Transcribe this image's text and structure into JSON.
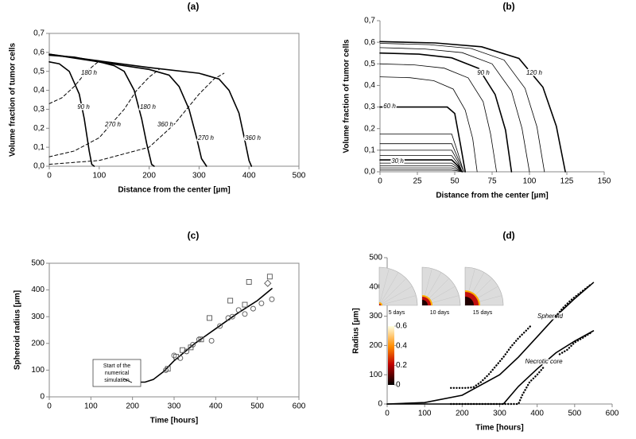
{
  "chart_data": [
    {
      "type": "line",
      "title": "(a)",
      "xlabel": "Distance from the center [µm]",
      "ylabel": "Volume fraction of tumor cells",
      "frame": "box",
      "xlim": [
        0,
        500
      ],
      "ylim": [
        0,
        0.7
      ],
      "xticks": [
        0,
        100,
        200,
        300,
        400,
        500
      ],
      "yticks": [
        {
          "value": 0,
          "label": "0,0"
        },
        {
          "value": 0.1,
          "label": "0,1"
        },
        {
          "value": 0.2,
          "label": "0,2"
        },
        {
          "value": 0.3,
          "label": "0,3"
        },
        {
          "value": 0.4,
          "label": "0,4"
        },
        {
          "value": 0.5,
          "label": "0,5"
        },
        {
          "value": 0.6,
          "label": "0,6"
        },
        {
          "value": 0.7,
          "label": "0,7"
        }
      ],
      "series": [
        {
          "name": "90 h",
          "color": "#000000",
          "style": "solid",
          "x": [
            0,
            20,
            40,
            60,
            70,
            80,
            85,
            90
          ],
          "values": [
            0.55,
            0.54,
            0.5,
            0.38,
            0.25,
            0.08,
            0.01,
            0
          ]
        },
        {
          "name": "180 h",
          "color": "#000000",
          "style": "solid",
          "x": [
            0,
            50,
            100,
            130,
            150,
            170,
            185,
            195,
            205,
            210
          ],
          "values": [
            0.585,
            0.575,
            0.55,
            0.53,
            0.5,
            0.4,
            0.25,
            0.12,
            0.01,
            0
          ]
        },
        {
          "name": "270 h",
          "color": "#000000",
          "style": "solid",
          "x": [
            0,
            100,
            200,
            240,
            260,
            280,
            295,
            305,
            315
          ],
          "values": [
            0.59,
            0.55,
            0.51,
            0.48,
            0.42,
            0.3,
            0.15,
            0.04,
            0
          ]
        },
        {
          "name": "360 h",
          "color": "#000000",
          "style": "solid",
          "x": [
            0,
            100,
            200,
            300,
            340,
            360,
            380,
            393,
            400,
            405
          ],
          "values": [
            0.59,
            0.555,
            0.52,
            0.49,
            0.46,
            0.4,
            0.28,
            0.12,
            0.03,
            0
          ]
        },
        {
          "name": "180 h",
          "color": "#000000",
          "style": "dashed",
          "x": [
            0,
            25,
            50,
            75,
            100
          ],
          "values": [
            0.33,
            0.36,
            0.42,
            0.5,
            0.555
          ]
        },
        {
          "name": "270 h",
          "color": "#000000",
          "style": "dashed",
          "x": [
            0,
            50,
            100,
            150,
            175,
            200,
            220
          ],
          "values": [
            0.05,
            0.08,
            0.15,
            0.3,
            0.4,
            0.47,
            0.51
          ]
        },
        {
          "name": "360 h",
          "color": "#000000",
          "style": "dashed",
          "x": [
            0,
            100,
            200,
            250,
            300,
            330,
            350
          ],
          "values": [
            0.01,
            0.03,
            0.1,
            0.22,
            0.38,
            0.46,
            0.49
          ]
        }
      ]
    },
    {
      "type": "line",
      "title": "(b)",
      "xlabel": "Distance from the center [µm]",
      "ylabel": "Volume fraction of tumor cells",
      "frame": "axes",
      "xlim": [
        0,
        150
      ],
      "ylim": [
        0,
        0.7
      ],
      "xticks": [
        0,
        25,
        50,
        75,
        100,
        125,
        150
      ],
      "yticks": [
        {
          "value": 0,
          "label": "0,0"
        },
        {
          "value": 0.1,
          "label": "0,1"
        },
        {
          "value": 0.2,
          "label": "0,2"
        },
        {
          "value": 0.3,
          "label": "0,3"
        },
        {
          "value": 0.4,
          "label": "0,4"
        },
        {
          "value": 0.5,
          "label": "0,5"
        },
        {
          "value": 0.6,
          "label": "0,6"
        },
        {
          "value": 0.7,
          "label": "0,7"
        }
      ],
      "series": [
        {
          "color": "#000000",
          "style": "thin",
          "x": [
            0,
            48,
            52,
            55
          ],
          "values": [
            0.008,
            0.008,
            0.004,
            0
          ]
        },
        {
          "color": "#000000",
          "style": "thin",
          "x": [
            0,
            48,
            52,
            55
          ],
          "values": [
            0.018,
            0.018,
            0.009,
            0
          ]
        },
        {
          "color": "#000000",
          "style": "thin",
          "x": [
            0,
            48,
            52,
            55
          ],
          "values": [
            0.028,
            0.028,
            0.014,
            0
          ]
        },
        {
          "color": "#000000",
          "style": "thin",
          "x": [
            0,
            48,
            52,
            55
          ],
          "values": [
            0.04,
            0.04,
            0.02,
            0
          ]
        },
        {
          "name": "30 h",
          "color": "#000000",
          "style": "solid",
          "x": [
            0,
            48,
            52,
            55
          ],
          "values": [
            0.055,
            0.055,
            0.028,
            0
          ]
        },
        {
          "color": "#000000",
          "style": "thin",
          "x": [
            0,
            48,
            52,
            55
          ],
          "values": [
            0.075,
            0.075,
            0.038,
            0
          ]
        },
        {
          "color": "#000000",
          "style": "thin",
          "x": [
            0,
            48,
            52,
            55
          ],
          "values": [
            0.1,
            0.1,
            0.05,
            0
          ]
        },
        {
          "color": "#000000",
          "style": "thin",
          "x": [
            0,
            48,
            52,
            56
          ],
          "values": [
            0.13,
            0.13,
            0.065,
            0
          ]
        },
        {
          "color": "#000000",
          "style": "thin",
          "x": [
            0,
            48,
            52,
            56
          ],
          "values": [
            0.175,
            0.175,
            0.09,
            0
          ]
        },
        {
          "name": "60 h",
          "color": "#000000",
          "style": "solid",
          "x": [
            0,
            45,
            50,
            54,
            57
          ],
          "values": [
            0.3,
            0.3,
            0.27,
            0.12,
            0
          ]
        },
        {
          "color": "#000000",
          "style": "thin",
          "x": [
            0,
            20,
            36,
            49,
            57,
            62,
            65
          ],
          "values": [
            0.44,
            0.436,
            0.422,
            0.383,
            0.286,
            0.154,
            0
          ]
        },
        {
          "color": "#000000",
          "style": "thin",
          "x": [
            0,
            23,
            43,
            59,
            69,
            74,
            78
          ],
          "values": [
            0.5,
            0.495,
            0.48,
            0.435,
            0.325,
            0.175,
            0
          ]
        },
        {
          "name": "90 h",
          "color": "#000000",
          "style": "solid",
          "x": [
            0,
            26,
            48,
            66,
            77,
            84,
            88
          ],
          "values": [
            0.55,
            0.545,
            0.528,
            0.479,
            0.358,
            0.193,
            0
          ]
        },
        {
          "color": "#000000",
          "style": "thin",
          "x": [
            0,
            30,
            55,
            75,
            88,
            95,
            100
          ],
          "values": [
            0.575,
            0.569,
            0.552,
            0.5,
            0.374,
            0.201,
            0
          ]
        },
        {
          "color": "#000000",
          "style": "thin",
          "x": [
            0,
            33,
            61,
            83,
            97,
            105,
            110
          ],
          "values": [
            0.595,
            0.589,
            0.571,
            0.518,
            0.387,
            0.208,
            0
          ]
        },
        {
          "name": "120 h",
          "color": "#000000",
          "style": "solid",
          "x": [
            0,
            37,
            68,
            93,
            109,
            118,
            124
          ],
          "values": [
            0.603,
            0.597,
            0.579,
            0.525,
            0.392,
            0.211,
            0
          ]
        }
      ]
    },
    {
      "type": "scatter",
      "title": "(c)",
      "xlabel": "Time [hours]",
      "ylabel": "Spheroid radius [µm]",
      "frame": "box",
      "xlim": [
        0,
        600
      ],
      "ylim": [
        0,
        500
      ],
      "xticks": [
        0,
        100,
        200,
        300,
        400,
        500,
        600
      ],
      "yticks": [
        0,
        100,
        200,
        300,
        400,
        500
      ],
      "annotation": [
        "Start of the",
        "numerical",
        "simulation"
      ],
      "series": [
        {
          "color": "#000000",
          "marker": "none",
          "style": "solid",
          "x": [
            200,
            230,
            250,
            275,
            300,
            350,
            400,
            450,
            500,
            535
          ],
          "values": [
            55,
            55,
            65,
            95,
            135,
            200,
            255,
            310,
            360,
            405
          ]
        },
        {
          "color": "#555555",
          "marker": "square",
          "x": [
            285,
            305,
            320,
            340,
            365,
            385,
            435,
            470,
            480,
            530
          ],
          "values": [
            105,
            150,
            175,
            185,
            215,
            295,
            360,
            345,
            430,
            450
          ]
        },
        {
          "color": "#555555",
          "marker": "circle",
          "x": [
            280,
            300,
            315,
            330,
            345,
            360,
            390,
            410,
            430,
            440,
            455,
            470,
            490,
            510,
            535
          ],
          "values": [
            100,
            155,
            145,
            170,
            195,
            215,
            210,
            265,
            295,
            300,
            325,
            310,
            330,
            350,
            365
          ]
        },
        {
          "color": "#555555",
          "marker": "diamond",
          "x": [
            525
          ],
          "values": [
            425
          ]
        }
      ]
    },
    {
      "type": "line",
      "title": "(d)",
      "xlabel": "Time [hours]",
      "ylabel": "Radius [µm]",
      "frame": "axes",
      "xlim": [
        0,
        600
      ],
      "ylim": [
        0,
        500
      ],
      "xticks": [
        0,
        100,
        200,
        300,
        400,
        500,
        600
      ],
      "yticks": [
        0,
        100,
        200,
        300,
        400,
        500
      ],
      "insets": [
        "5 days",
        "10 days",
        "15 days"
      ],
      "colorbar": {
        "lim": [
          0,
          0.6
        ],
        "ticks": [
          0.6,
          0.4,
          0.2,
          0
        ]
      },
      "series": [
        {
          "name": "Spheroid",
          "color": "#000000",
          "style": "solid",
          "x": [
            0,
            100,
            200,
            300,
            350,
            400,
            450,
            500,
            550
          ],
          "values": [
            0,
            5,
            30,
            100,
            160,
            230,
            300,
            360,
            415
          ]
        },
        {
          "name": "Necrotic core",
          "color": "#000000",
          "style": "solid",
          "x": [
            0,
            310,
            350,
            400,
            450,
            500,
            550
          ],
          "values": [
            0,
            0,
            60,
            120,
            175,
            215,
            250
          ]
        },
        {
          "color": "#000000",
          "style": "dotted",
          "x": [
            170,
            190,
            210,
            230,
            250,
            270,
            290,
            310,
            330,
            350,
            370,
            385,
            420,
            450,
            470,
            490,
            510,
            530,
            545
          ],
          "values": [
            55,
            55,
            55,
            57,
            75,
            100,
            130,
            160,
            195,
            225,
            250,
            270,
            null,
            300,
            330,
            355,
            375,
            395,
            410
          ]
        },
        {
          "color": "#000000",
          "style": "dotted",
          "x": [
            170,
            200,
            230,
            260,
            290,
            320,
            350,
            360,
            380,
            400,
            420,
            440,
            460,
            480,
            500,
            520,
            545
          ],
          "values": [
            0,
            0,
            0,
            0,
            0,
            0,
            0,
            30,
            75,
            100,
            130,
            null,
            170,
            185,
            210,
            225,
            245
          ]
        }
      ]
    }
  ]
}
